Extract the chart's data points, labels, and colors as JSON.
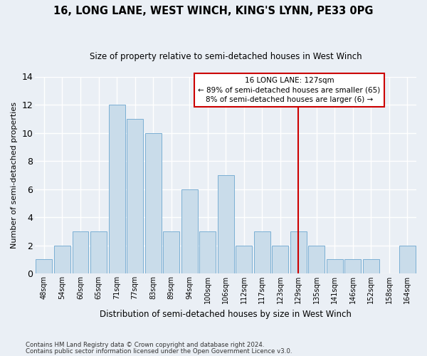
{
  "title1": "16, LONG LANE, WEST WINCH, KING'S LYNN, PE33 0PG",
  "title2": "Size of property relative to semi-detached houses in West Winch",
  "xlabel": "Distribution of semi-detached houses by size in West Winch",
  "ylabel": "Number of semi-detached properties",
  "categories": [
    "48sqm",
    "54sqm",
    "60sqm",
    "65sqm",
    "71sqm",
    "77sqm",
    "83sqm",
    "89sqm",
    "94sqm",
    "100sqm",
    "106sqm",
    "112sqm",
    "117sqm",
    "123sqm",
    "129sqm",
    "135sqm",
    "141sqm",
    "146sqm",
    "152sqm",
    "158sqm",
    "164sqm"
  ],
  "values": [
    1,
    2,
    3,
    3,
    12,
    11,
    10,
    3,
    6,
    3,
    7,
    2,
    3,
    2,
    3,
    2,
    1,
    1,
    1,
    0,
    2
  ],
  "bar_color": "#c9dcea",
  "bar_edge_color": "#7bafd4",
  "background_color": "#eaeff5",
  "grid_color": "#ffffff",
  "ylim": [
    0,
    14
  ],
  "yticks": [
    0,
    2,
    4,
    6,
    8,
    10,
    12,
    14
  ],
  "vline_x": 14.0,
  "annotation_text": "16 LONG LANE: 127sqm\n← 89% of semi-detached houses are smaller (65)\n8% of semi-detached houses are larger (6) →",
  "annotation_box_color": "#ffffff",
  "annotation_edge_color": "#cc0000",
  "vline_color": "#cc0000",
  "footnote1": "Contains HM Land Registry data © Crown copyright and database right 2024.",
  "footnote2": "Contains public sector information licensed under the Open Government Licence v3.0."
}
